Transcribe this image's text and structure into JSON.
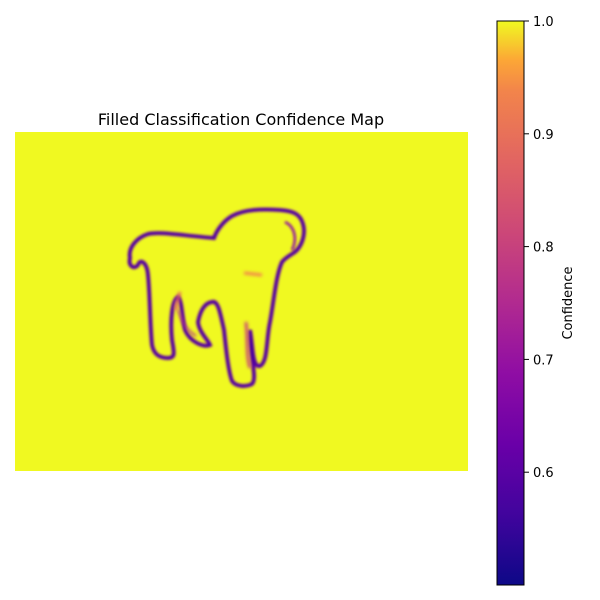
{
  "chart_data": {
    "type": "heatmap",
    "title": "Filled Classification Confidence Map",
    "subject": "dog silhouette",
    "background_value": 1.0,
    "outline_value_min": 0.5,
    "colormap": "plasma",
    "colorbar": {
      "label": "Confidence",
      "range": [
        0.5,
        1.0
      ],
      "ticks": [
        0.6,
        0.7,
        0.8,
        0.9,
        1.0
      ],
      "tick_labels": [
        "0.6",
        "0.7",
        "0.8",
        "0.9",
        "1.0"
      ]
    },
    "axes_visible": false,
    "colors": {
      "high": "#f0f921",
      "mid": "#cc4778",
      "low": "#0d0887"
    }
  }
}
